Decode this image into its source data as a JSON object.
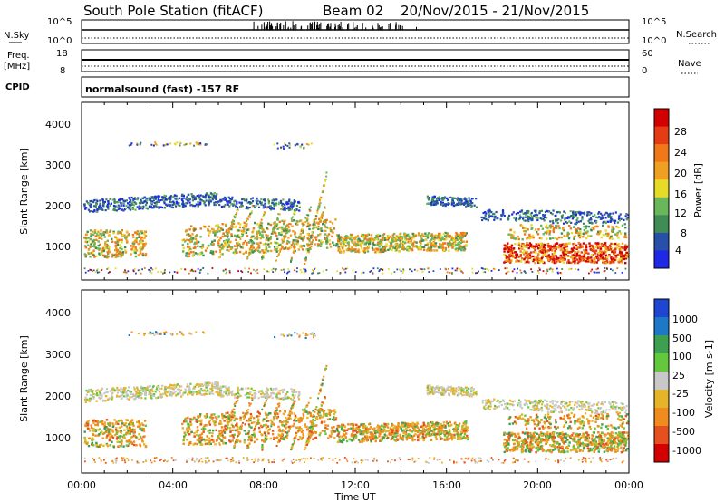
{
  "header": {
    "title": "South Pole Station (fitACF)",
    "beam": "Beam 02",
    "dates": "20/Nov/2015 - 21/Nov/2015"
  },
  "top_panels": {
    "nsky_label": "N.Sky",
    "nsearch_label": "N.Search",
    "nsky_ticks": [
      "10^5",
      "10^0"
    ],
    "nsearch_ticks": [
      "10^5",
      "10^0"
    ],
    "freq_label": "Freq.",
    "freq_unit": "[MHz]",
    "freq_ticks": [
      "18",
      "8"
    ],
    "nave_label": "Nave",
    "nave_ticks": [
      "60",
      "0"
    ],
    "cpid_label": "CPID",
    "cpid_text": "normalsound (fast) -157 RF"
  },
  "colors": {
    "power_scale": [
      "#1e28e6",
      "#2850aa",
      "#3f8c55",
      "#6ab65a",
      "#e6dc28",
      "#f0a020",
      "#f07818",
      "#e63c14",
      "#d20000"
    ],
    "velocity_scale": [
      "#1e46d2",
      "#1e78c8",
      "#3ca050",
      "#64c83c",
      "#c8c8c8",
      "#e6b428",
      "#f08c1e",
      "#e6501e",
      "#d20000"
    ]
  },
  "chart_data": [
    {
      "type": "heatmap",
      "name": "power",
      "ylabel": "Slant Range [km]",
      "xlabel": "Time UT",
      "yticks": [
        "1000",
        "2000",
        "3000",
        "4000"
      ],
      "ylim": [
        200,
        4550
      ],
      "xticks": [
        "00:00",
        "04:00",
        "08:00",
        "12:00",
        "16:00",
        "20:00",
        "00:00"
      ],
      "xlim_hours": [
        0,
        24
      ],
      "colorbar": {
        "label": "Power [dB]",
        "ticks": [
          "4",
          "8",
          "12",
          "16",
          "20",
          "24",
          "28"
        ]
      }
    },
    {
      "type": "heatmap",
      "name": "velocity",
      "ylabel": "Slant Range [km]",
      "xlabel": "Time UT",
      "yticks": [
        "1000",
        "2000",
        "3000",
        "4000"
      ],
      "ylim": [
        200,
        4550
      ],
      "xticks": [
        "00:00",
        "04:00",
        "08:00",
        "12:00",
        "16:00",
        "20:00",
        "00:00"
      ],
      "xlim_hours": [
        0,
        24
      ],
      "colorbar": {
        "label": "Velocity [m s-1]",
        "ticks": [
          "1000",
          "500",
          "100",
          "25",
          "-25",
          "-100",
          "-500",
          "-1000"
        ]
      }
    }
  ]
}
